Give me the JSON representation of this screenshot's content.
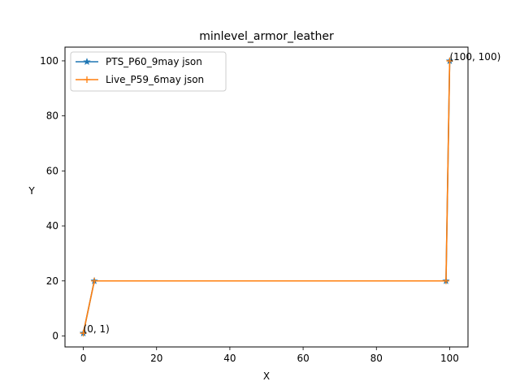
{
  "chart_data": {
    "type": "line",
    "title": "minlevel_armor_leather",
    "xlabel": "X",
    "ylabel": "Y",
    "xlim": [
      -5,
      105
    ],
    "ylim": [
      -4,
      105
    ],
    "xticks": [
      0,
      20,
      40,
      60,
      80,
      100
    ],
    "yticks": [
      0,
      20,
      40,
      60,
      80,
      100
    ],
    "grid": false,
    "legend_position": "top-left",
    "series": [
      {
        "name": "PTS_P60_9may json",
        "color": "#1f77b4",
        "marker": "star",
        "x": [
          0,
          3,
          99,
          100
        ],
        "y": [
          1,
          20,
          20,
          100
        ]
      },
      {
        "name": "Live_P59_6may json",
        "color": "#ff7f0e",
        "marker": "plus",
        "x": [
          0,
          3,
          99,
          100
        ],
        "y": [
          1,
          20,
          20,
          100
        ]
      }
    ],
    "annotations": [
      {
        "text": "(0, 1)",
        "x": 0,
        "y": 1
      },
      {
        "text": "(100, 100)",
        "x": 100,
        "y": 100
      }
    ]
  }
}
